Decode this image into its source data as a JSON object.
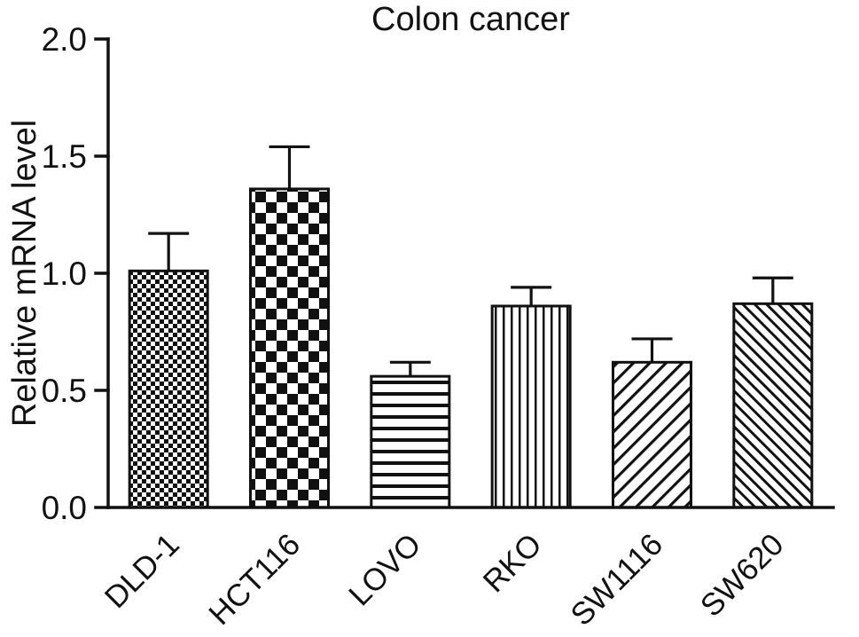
{
  "chart_data": {
    "type": "bar",
    "title": "Colon cancer",
    "xlabel": "",
    "ylabel": "Relative mRNA level",
    "categories": [
      "DLD-1",
      "HCT116",
      "LOVO",
      "RKO",
      "SW1116",
      "SW620"
    ],
    "values": [
      1.01,
      1.36,
      0.56,
      0.86,
      0.62,
      0.87
    ],
    "errors": [
      0.16,
      0.18,
      0.06,
      0.08,
      0.1,
      0.11
    ],
    "patterns": [
      "checker-small",
      "checker-large",
      "horizontal-lines",
      "vertical-lines",
      "diagonal-forward",
      "diagonal-back"
    ],
    "ylim": [
      0,
      2.0
    ],
    "yticks": [
      0.0,
      0.5,
      1.0,
      1.5,
      2.0
    ],
    "grid": false,
    "legend": false,
    "bar_fill_color": "#000000",
    "bar_background": "#ffffff",
    "axis_color": "#111111",
    "background": "#ffffff"
  }
}
